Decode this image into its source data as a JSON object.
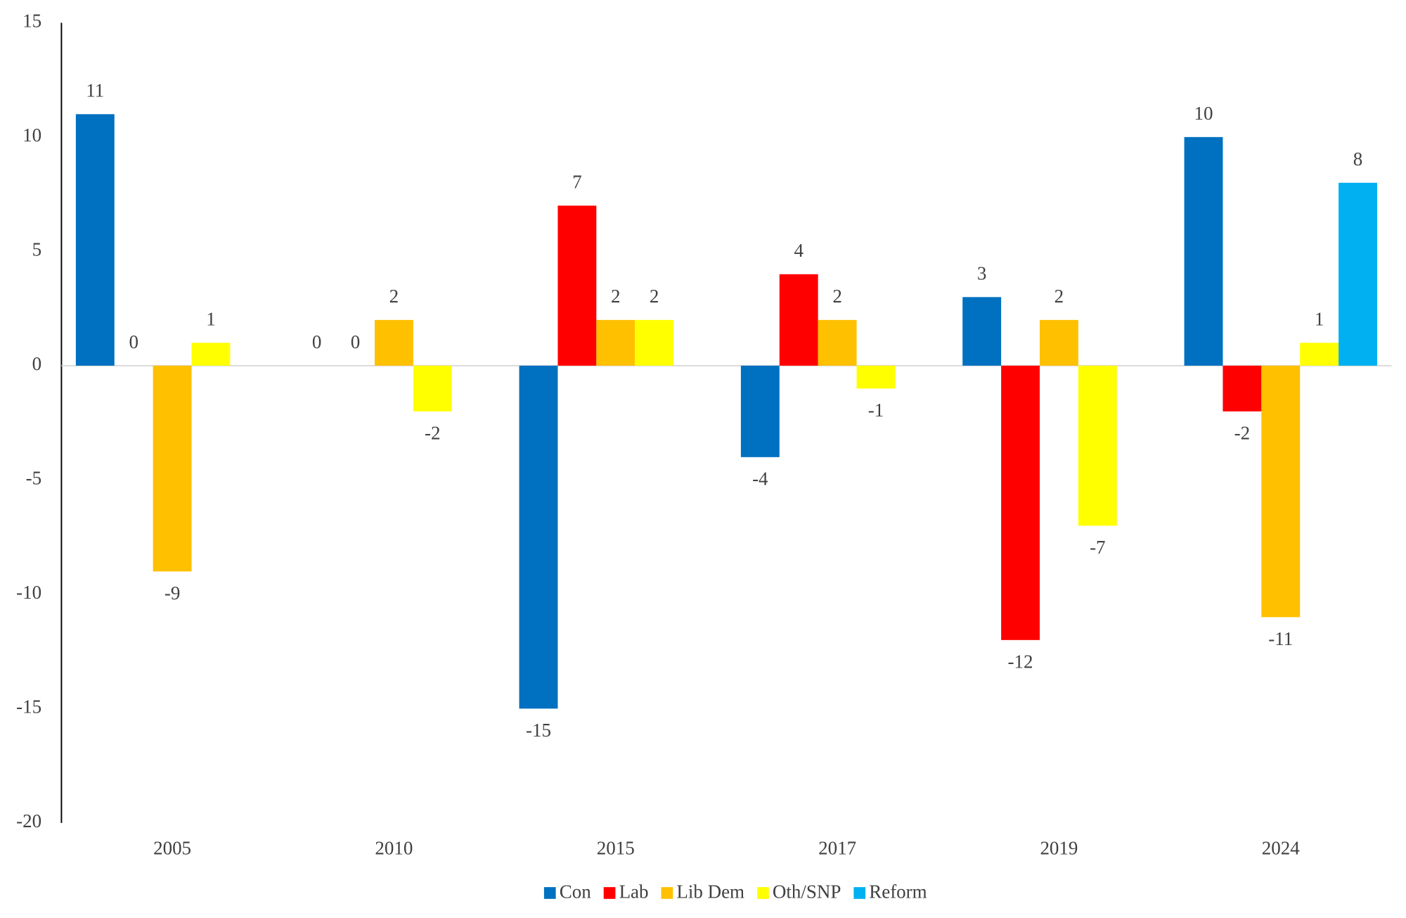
{
  "chart_data": {
    "type": "bar",
    "categories": [
      "2005",
      "2010",
      "2015",
      "2017",
      "2019",
      "2024"
    ],
    "series": [
      {
        "name": "Con",
        "color": "#0070c0",
        "values": [
          11,
          0,
          -15,
          -4,
          3,
          10
        ]
      },
      {
        "name": "Lab",
        "color": "#ff0000",
        "values": [
          0,
          0,
          7,
          4,
          -12,
          -2
        ]
      },
      {
        "name": "Lib Dem",
        "color": "#ffc000",
        "values": [
          -9,
          2,
          2,
          2,
          2,
          -11
        ]
      },
      {
        "name": "Oth/SNP",
        "color": "#ffff00",
        "values": [
          1,
          -2,
          2,
          -1,
          -7,
          1
        ]
      },
      {
        "name": "Reform",
        "color": "#00b0f0",
        "values": [
          null,
          null,
          null,
          null,
          null,
          8
        ]
      }
    ],
    "ylim": [
      -20,
      15
    ],
    "yticks": [
      -20,
      -15,
      -10,
      -5,
      0,
      5,
      10,
      15
    ],
    "grid": false,
    "legend": "bottom"
  }
}
